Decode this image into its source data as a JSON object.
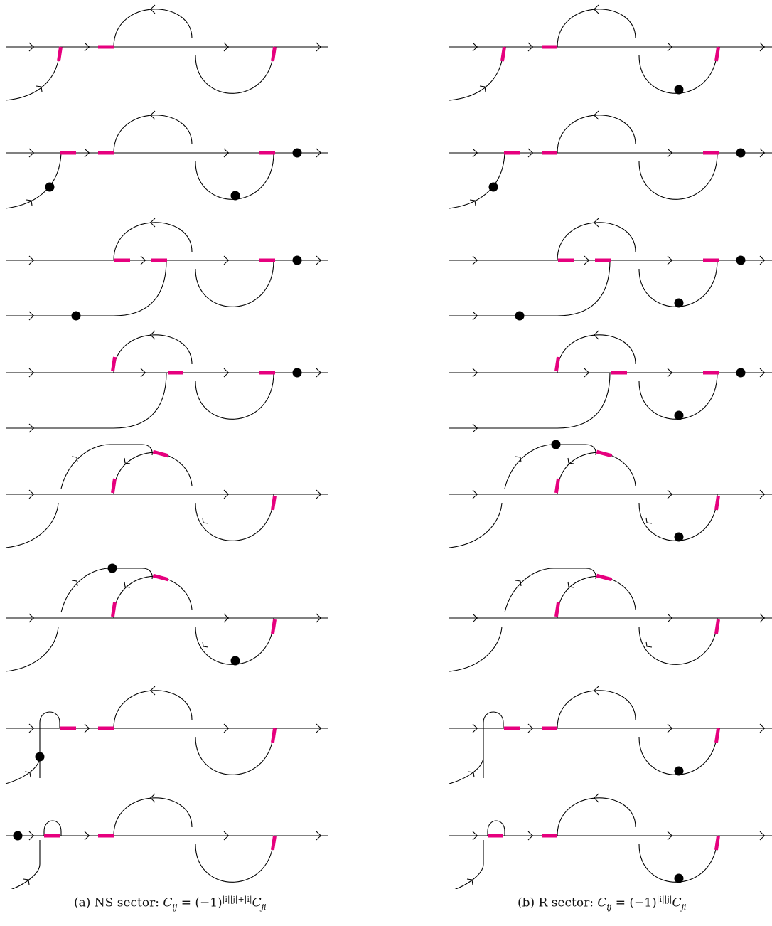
{
  "colors": {
    "line": "#000000",
    "marker": "#e6007e",
    "dot": "#000000"
  },
  "captions": {
    "a": {
      "label": "(a) NS sector: ",
      "exponent": "|i||j|+|i|"
    },
    "b": {
      "label": "(b) R sector: ",
      "exponent": "|i||j|"
    }
  },
  "panels": [
    {
      "id": "a",
      "rows": [
        {
          "variant": "A",
          "dots": []
        },
        {
          "variant": "B",
          "dots": [
            "inlet",
            "lowerArc",
            "rightEnd"
          ]
        },
        {
          "variant": "C",
          "dots": [
            "bottomLine",
            "rightEnd"
          ]
        },
        {
          "variant": "D",
          "dots": [
            "rightEnd"
          ]
        },
        {
          "variant": "E",
          "dots": []
        },
        {
          "variant": "F",
          "dots": [
            "bigLoop",
            "lowerArc"
          ]
        },
        {
          "variant": "G",
          "dots": [
            "sideStub"
          ]
        },
        {
          "variant": "H",
          "dots": [
            "leftEnd"
          ]
        }
      ]
    },
    {
      "id": "b",
      "rows": [
        {
          "variant": "A",
          "dots": [
            "lowerArc"
          ]
        },
        {
          "variant": "B",
          "dots": [
            "inlet",
            "rightEnd"
          ]
        },
        {
          "variant": "C",
          "dots": [
            "bottomLine",
            "lowerArc",
            "rightEnd"
          ]
        },
        {
          "variant": "D",
          "dots": [
            "lowerArc",
            "rightEnd"
          ]
        },
        {
          "variant": "E",
          "dots": [
            "bigLoop",
            "lowerArc"
          ]
        },
        {
          "variant": "F",
          "dots": []
        },
        {
          "variant": "G",
          "dots": [
            "lowerArc"
          ]
        },
        {
          "variant": "H",
          "dots": [
            "lowerArc"
          ]
        }
      ]
    }
  ]
}
